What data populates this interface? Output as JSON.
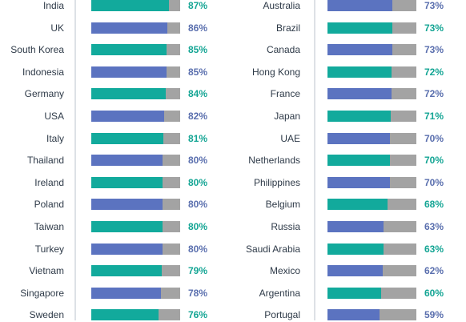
{
  "chart_data": [
    {
      "type": "bar",
      "orientation": "horizontal",
      "xlim": [
        0,
        100
      ],
      "unit": "%",
      "colors": {
        "blue": "#5b73c0",
        "teal": "#12aa9c",
        "track": "#a3a3a3",
        "value_blue": "#5a6fae",
        "value_teal": "#14a594"
      },
      "bars": [
        {
          "category": "India",
          "value": 87,
          "label": "87%",
          "color": "teal"
        },
        {
          "category": "UK",
          "value": 86,
          "label": "86%",
          "color": "blue"
        },
        {
          "category": "South Korea",
          "value": 85,
          "label": "85%",
          "color": "teal"
        },
        {
          "category": "Indonesia",
          "value": 85,
          "label": "85%",
          "color": "blue"
        },
        {
          "category": "Germany",
          "value": 84,
          "label": "84%",
          "color": "teal"
        },
        {
          "category": "USA",
          "value": 82,
          "label": "82%",
          "color": "blue"
        },
        {
          "category": "Italy",
          "value": 81,
          "label": "81%",
          "color": "teal"
        },
        {
          "category": "Thailand",
          "value": 80,
          "label": "80%",
          "color": "blue"
        },
        {
          "category": "Ireland",
          "value": 80,
          "label": "80%",
          "color": "teal"
        },
        {
          "category": "Poland",
          "value": 80,
          "label": "80%",
          "color": "blue"
        },
        {
          "category": "Taiwan",
          "value": 80,
          "label": "80%",
          "color": "teal"
        },
        {
          "category": "Turkey",
          "value": 80,
          "label": "80%",
          "color": "blue"
        },
        {
          "category": "Vietnam",
          "value": 79,
          "label": "79%",
          "color": "teal"
        },
        {
          "category": "Singapore",
          "value": 78,
          "label": "78%",
          "color": "blue"
        },
        {
          "category": "Sweden",
          "value": 76,
          "label": "76%",
          "color": "teal"
        }
      ]
    },
    {
      "type": "bar",
      "orientation": "horizontal",
      "xlim": [
        0,
        100
      ],
      "unit": "%",
      "colors": {
        "blue": "#5b73c0",
        "teal": "#12aa9c",
        "track": "#a3a3a3",
        "value_blue": "#5a6fae",
        "value_teal": "#14a594"
      },
      "bars": [
        {
          "category": "Australia",
          "value": 73,
          "label": "73%",
          "color": "blue"
        },
        {
          "category": "Brazil",
          "value": 73,
          "label": "73%",
          "color": "teal"
        },
        {
          "category": "Canada",
          "value": 73,
          "label": "73%",
          "color": "blue"
        },
        {
          "category": "Hong Kong",
          "value": 72,
          "label": "72%",
          "color": "teal"
        },
        {
          "category": "France",
          "value": 72,
          "label": "72%",
          "color": "blue"
        },
        {
          "category": "Japan",
          "value": 71,
          "label": "71%",
          "color": "teal"
        },
        {
          "category": "UAE",
          "value": 70,
          "label": "70%",
          "color": "blue"
        },
        {
          "category": "Netherlands",
          "value": 70,
          "label": "70%",
          "color": "teal"
        },
        {
          "category": "Philippines",
          "value": 70,
          "label": "70%",
          "color": "blue"
        },
        {
          "category": "Belgium",
          "value": 68,
          "label": "68%",
          "color": "teal"
        },
        {
          "category": "Russia",
          "value": 63,
          "label": "63%",
          "color": "blue"
        },
        {
          "category": "Saudi Arabia",
          "value": 63,
          "label": "63%",
          "color": "teal"
        },
        {
          "category": "Mexico",
          "value": 62,
          "label": "62%",
          "color": "blue"
        },
        {
          "category": "Argentina",
          "value": 60,
          "label": "60%",
          "color": "teal"
        },
        {
          "category": "Portugal",
          "value": 59,
          "label": "59%",
          "color": "blue"
        }
      ]
    }
  ]
}
